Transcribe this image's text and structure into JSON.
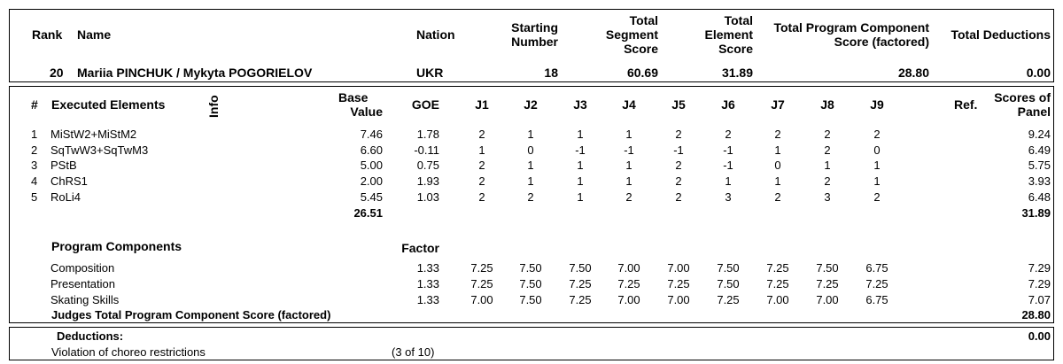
{
  "summary": {
    "headers": {
      "rank": "Rank",
      "name": "Name",
      "nation": "Nation",
      "starting_number": [
        "Starting",
        "Number"
      ],
      "total_segment_score": [
        "Total",
        "Segment",
        "Score"
      ],
      "total_element_score": [
        "Total",
        "Element",
        "Score"
      ],
      "total_pcs": [
        "Total Program Component",
        "Score (factored)"
      ],
      "total_deductions": "Total Deductions"
    },
    "values": {
      "rank": "20",
      "name": "Mariia PINCHUK / Mykyta POGORIELOV",
      "nation": "UKR",
      "starting_number": "18",
      "total_segment_score": "60.69",
      "total_element_score": "31.89",
      "total_pcs": "28.80",
      "total_deductions": "0.00"
    }
  },
  "elements": {
    "headers": {
      "num": "#",
      "executed": "Executed Elements",
      "info": "Info",
      "base_value": [
        "Base",
        "Value"
      ],
      "goe": "GOE",
      "judges": [
        "J1",
        "J2",
        "J3",
        "J4",
        "J5",
        "J6",
        "J7",
        "J8",
        "J9"
      ],
      "ref": "Ref.",
      "scores": [
        "Scores of",
        "Panel"
      ]
    },
    "rows": [
      {
        "num": "1",
        "name": "MiStW2+MiStM2",
        "base": "7.46",
        "goe": "1.78",
        "j": [
          "2",
          "1",
          "1",
          "1",
          "2",
          "2",
          "2",
          "2",
          "2"
        ],
        "score": "9.24"
      },
      {
        "num": "2",
        "name": "SqTwW3+SqTwM3",
        "base": "6.60",
        "goe": "-0.11",
        "j": [
          "1",
          "0",
          "-1",
          "-1",
          "-1",
          "-1",
          "1",
          "2",
          "0"
        ],
        "score": "6.49"
      },
      {
        "num": "3",
        "name": "PStB",
        "base": "5.00",
        "goe": "0.75",
        "j": [
          "2",
          "1",
          "1",
          "1",
          "2",
          "-1",
          "0",
          "1",
          "1"
        ],
        "score": "5.75"
      },
      {
        "num": "4",
        "name": "ChRS1",
        "base": "2.00",
        "goe": "1.93",
        "j": [
          "2",
          "1",
          "1",
          "1",
          "2",
          "1",
          "1",
          "2",
          "1"
        ],
        "score": "3.93"
      },
      {
        "num": "5",
        "name": "RoLi4",
        "base": "5.45",
        "goe": "1.03",
        "j": [
          "2",
          "2",
          "1",
          "2",
          "2",
          "3",
          "2",
          "3",
          "2"
        ],
        "score": "6.48"
      }
    ],
    "base_total": "26.51",
    "score_total": "31.89"
  },
  "components": {
    "title": "Program Components",
    "factor_label": "Factor",
    "rows": [
      {
        "name": "Composition",
        "factor": "1.33",
        "j": [
          "7.25",
          "7.50",
          "7.50",
          "7.00",
          "7.00",
          "7.50",
          "7.25",
          "7.50",
          "6.75"
        ],
        "score": "7.29"
      },
      {
        "name": "Presentation",
        "factor": "1.33",
        "j": [
          "7.25",
          "7.50",
          "7.25",
          "7.25",
          "7.25",
          "7.50",
          "7.25",
          "7.25",
          "7.25"
        ],
        "score": "7.29"
      },
      {
        "name": "Skating Skills",
        "factor": "1.33",
        "j": [
          "7.00",
          "7.50",
          "7.25",
          "7.00",
          "7.00",
          "7.25",
          "7.00",
          "7.00",
          "6.75"
        ],
        "score": "7.07"
      }
    ],
    "total_label": "Judges Total Program Component Score (factored)",
    "total_value": "28.80"
  },
  "deductions": {
    "title": "Deductions:",
    "total": "0.00",
    "item_label": "Violation of choreo restrictions",
    "item_note": "(3 of 10)"
  }
}
